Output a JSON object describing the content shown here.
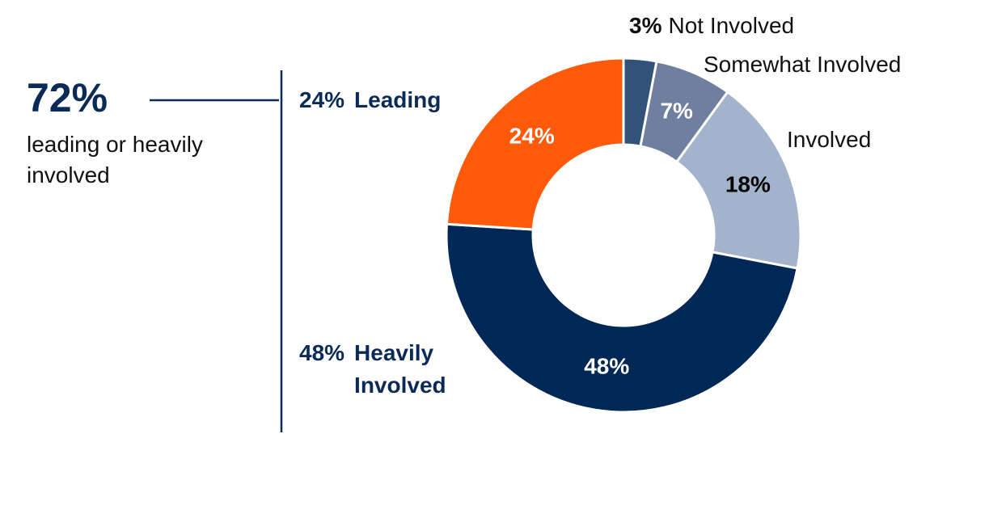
{
  "chart_data": {
    "type": "donut",
    "categories": [
      "Not Involved",
      "Somewhat Involved",
      "Involved",
      "Heavily Involved",
      "Leading"
    ],
    "values": [
      3,
      7,
      18,
      48,
      24
    ],
    "value_labels": [
      "3%",
      "7%",
      "18%",
      "48%",
      "24%"
    ],
    "colors": [
      "#33527a",
      "#6e7fa0",
      "#a3b3cc",
      "#002856",
      "#ff5a0a"
    ],
    "annotation_title": "72%",
    "annotation_text": "leading or heavily involved"
  }
}
